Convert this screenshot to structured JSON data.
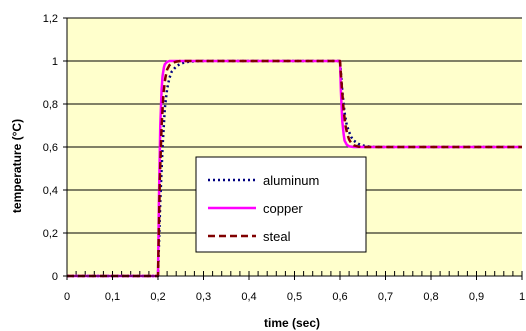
{
  "chart_data": {
    "type": "line",
    "xlabel": "time (sec)",
    "ylabel": "temperature (°C)",
    "xlim": [
      0,
      1
    ],
    "ylim": [
      0,
      1.2
    ],
    "x_ticks": [
      "0",
      "0,1",
      "0,2",
      "0,3",
      "0,4",
      "0,5",
      "0,6",
      "0,7",
      "0,8",
      "0,9",
      "1"
    ],
    "y_ticks": [
      "0",
      "0,2",
      "0,4",
      "0,6",
      "0,8",
      "1",
      "1,2"
    ],
    "grid": "horizontal",
    "legend_position": "center-left",
    "plot_background": "#FFFFCC",
    "series": [
      {
        "name": "aluminum",
        "color": "#000080",
        "style": "dotted",
        "x": [
          0,
          0.199,
          0.2,
          0.205,
          0.21,
          0.215,
          0.22,
          0.225,
          0.23,
          0.24,
          0.25,
          0.26,
          0.27,
          0.28,
          0.3,
          0.599,
          0.6,
          0.605,
          0.61,
          0.615,
          0.62,
          0.625,
          0.63,
          0.64,
          0.65,
          0.66,
          0.67,
          0.68,
          0.7,
          1.0
        ],
        "y": [
          0,
          0,
          0,
          0.35,
          0.6,
          0.78,
          0.87,
          0.92,
          0.95,
          0.975,
          0.988,
          0.994,
          0.997,
          0.999,
          1.0,
          1.0,
          1.0,
          0.86,
          0.76,
          0.7,
          0.67,
          0.645,
          0.63,
          0.615,
          0.607,
          0.603,
          0.601,
          0.6,
          0.6,
          0.6
        ]
      },
      {
        "name": "copper",
        "color": "#FF00FF",
        "style": "solid",
        "x": [
          0,
          0.199,
          0.2,
          0.202,
          0.205,
          0.208,
          0.21,
          0.213,
          0.215,
          0.22,
          0.225,
          0.23,
          0.599,
          0.6,
          0.602,
          0.605,
          0.608,
          0.61,
          0.615,
          0.62,
          0.63,
          1.0
        ],
        "y": [
          0,
          0,
          0,
          0.35,
          0.7,
          0.87,
          0.93,
          0.97,
          0.985,
          0.996,
          1.0,
          1.0,
          1.0,
          1.0,
          0.86,
          0.72,
          0.66,
          0.63,
          0.61,
          0.603,
          0.6,
          0.6
        ]
      },
      {
        "name": "steal",
        "color": "#800000",
        "style": "dashed",
        "x": [
          0,
          0.199,
          0.2,
          0.204,
          0.208,
          0.212,
          0.216,
          0.22,
          0.225,
          0.23,
          0.24,
          0.25,
          0.599,
          0.6,
          0.604,
          0.608,
          0.612,
          0.616,
          0.62,
          0.625,
          0.63,
          0.64,
          0.65,
          1.0
        ],
        "y": [
          0,
          0,
          0,
          0.45,
          0.7,
          0.85,
          0.92,
          0.96,
          0.98,
          0.99,
          0.997,
          1.0,
          1.0,
          1.0,
          0.88,
          0.77,
          0.7,
          0.66,
          0.635,
          0.617,
          0.608,
          0.602,
          0.6,
          0.6
        ]
      }
    ]
  }
}
